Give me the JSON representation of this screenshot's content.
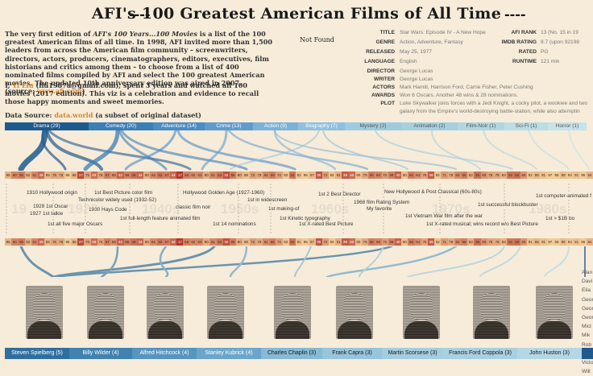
{
  "title": "AFI's 100 Greatest American Films of All Time",
  "title_dash": "----",
  "intro": {
    "t1": "The very first edition of ",
    "italic": "AFI's 100 Years...100 Movies",
    "t2": " is a list of the 100 greatest American films of all time. In 1998, AFI invited more than 1,500 leaders from across the American film community – screenwriters, directors, actors, producers, cinematographers, editors, executives, film historians and critics among them – to choose from a list of 400 nominated films compiled by AFI and select the 100 greatest American movies. The updated 10th anniversary edition was aired in 2007. (source: ",
    "link": "www.afi.com",
    "t3": ")"
  },
  "author": {
    "t1": "I, ",
    "name": "Yi Liu",
    "t2": " (liu1987a@gmail.com), spent 3 years and watched all 100 movies (2017 edition). This viz is a celebration and evidence to recall those happy moments and sweet memories."
  },
  "source": {
    "label": "Data Source: ",
    "link": "data.world",
    "note": " (a subset of original dataset)"
  },
  "not_found": "Not Found",
  "details": {
    "title": {
      "k": "TITLE",
      "v": "Star Wars: Episode IV - A New Hope"
    },
    "genre": {
      "k": "GENRE",
      "v": "Action, Adventure, Fantasy"
    },
    "released": {
      "k": "RELEASED",
      "v": "May 25, 1977"
    },
    "language": {
      "k": "LANGUAGE",
      "v": "English"
    },
    "director": {
      "k": "DIRECTOR",
      "v": "George Lucas"
    },
    "writer": {
      "k": "WRITER",
      "v": "George Lucas"
    },
    "actors": {
      "k": "ACTORS",
      "v": "Mark Hamill, Harrison Ford, Carrie Fisher, Peter Cushing"
    },
    "awards": {
      "k": "AWARDS",
      "v": "Won 6 Oscars. Another 48 wins & 28 nominations."
    },
    "plot": {
      "k": "PLOT",
      "v": "Luke Skywalker joins forces with a Jedi Knight, a cocky pilot, a wookiee and two",
      "v2": "galaxy from the Empire's world-destroying battle-station, while also attemptin"
    },
    "afi_rank": {
      "k": "AFI RANK",
      "v": "13 (No. 15 in 19"
    },
    "imdb": {
      "k": "IMDB RATING",
      "v": "8.7 (upon 92198"
    },
    "rated": {
      "k": "RATED",
      "v": "PG"
    },
    "runtime": {
      "k": "RUNTIME",
      "v": "121 min"
    }
  },
  "genres": [
    {
      "label": "Drama (29)",
      "color": "#1f5a8f",
      "w": 104
    },
    {
      "label": "Comedy (20)",
      "color": "#3a7fb8",
      "w": 80
    },
    {
      "label": "Adventure (14)",
      "color": "#4b8cc4",
      "w": 64
    },
    {
      "label": "Crime (13)",
      "color": "#5f9ccd",
      "w": 60
    },
    {
      "label": "Action (9)",
      "color": "#7db2d8",
      "w": 56
    },
    {
      "label": "Biography (7)",
      "color": "#8fc0de",
      "w": 58
    },
    {
      "label": "Mystery (2)",
      "color": "#9fcbe0",
      "w": 70
    },
    {
      "label": "Animation (2)",
      "color": "#a6d0df",
      "w": 70
    },
    {
      "label": "Film-Noir (1)",
      "color": "#b1d6e2",
      "w": 58
    },
    {
      "label": "Sci-Fi (1)",
      "color": "#bcdce6",
      "w": 54
    },
    {
      "label": "Horror (1)",
      "color": "#c6e2ea",
      "w": 48
    }
  ],
  "ranks_top": [
    "85",
    "60",
    "55",
    "82",
    "61",
    "45",
    "85",
    "76",
    "78",
    "96",
    "85",
    "27",
    "75",
    "48",
    "76",
    "57",
    "66",
    "42",
    "58",
    "49",
    "44",
    "80",
    "61",
    "53",
    "57",
    "44",
    "17",
    "58",
    "62",
    "63",
    "80",
    "61",
    "53",
    "32",
    "55",
    "80",
    "88",
    "72",
    "79",
    "64",
    "58",
    "74",
    "93",
    "52",
    "91",
    "96",
    "87",
    "35",
    "72",
    "94",
    "81",
    "38",
    "46",
    "90",
    "79",
    "55",
    "60",
    "72",
    "58",
    "40",
    "90",
    "56",
    "64",
    "76",
    "38",
    "92",
    "71",
    "78",
    "63",
    "58",
    "82",
    "49",
    "68",
    "76",
    "78",
    "84",
    "52",
    "50",
    "69",
    "91",
    "86",
    "91",
    "97",
    "96",
    "89",
    "94",
    "91",
    "96",
    "84"
  ],
  "ranks_bottom": [
    "85",
    "60",
    "55",
    "82",
    "61",
    "45",
    "85",
    "76",
    "78",
    "96",
    "85",
    "27",
    "75",
    "48",
    "76",
    "57",
    "66",
    "42",
    "58",
    "49",
    "44",
    "80",
    "61",
    "53",
    "57",
    "44",
    "17",
    "58",
    "62",
    "63",
    "80",
    "61",
    "53",
    "32",
    "55",
    "80",
    "88",
    "72",
    "79",
    "64",
    "58",
    "74",
    "93",
    "52",
    "91",
    "96",
    "87",
    "35",
    "72",
    "94",
    "81",
    "38",
    "46",
    "90",
    "79",
    "55",
    "60",
    "72",
    "58",
    "40",
    "90",
    "56",
    "64",
    "76",
    "38",
    "92",
    "71",
    "78",
    "63",
    "58",
    "82",
    "49",
    "68",
    "76",
    "78",
    "84",
    "52",
    "50",
    "69",
    "91",
    "86",
    "91",
    "97",
    "96",
    "89",
    "94",
    "91",
    "96",
    "84"
  ],
  "decades": [
    "19",
    "1930s",
    "1940s",
    "1950s",
    "1960s",
    "1970s",
    "1980s"
  ],
  "events": [
    "1910 Hollywood origin",
    "1st Best Picture color film",
    "Technicolor widely used (1932-52)",
    "1929 1st Oscar",
    "1930 Hays Code",
    "1927 1st talkie",
    "1st all five major Oscars",
    "Hollywood Golden Age (1927-1960)",
    "classic film noir",
    "1st full-length feature animated film",
    "1st 14 nominations",
    "1st in widescreen",
    "1st making-of",
    "1st Kinetic typography",
    "1st X-rated Best Picture",
    "1st 2 Best Director",
    "1968 film Rating System",
    "My favorite",
    "New Hollywood & Post Classical (60s-80s)",
    "1st successful blockbuster",
    "1st Vietnam War film after the war",
    "1st X-rated musical; wins record w/o Best Picture",
    "1st computer-animated f",
    "1st > $1B bo"
  ],
  "directors": [
    {
      "label": "Steven Spielberg (5)",
      "color": "#2f6f9f",
      "fg": "#ffffff",
      "w": 80
    },
    {
      "label": "Billy Wilder (4)",
      "color": "#3f82b0",
      "fg": "#ffffff",
      "w": 78
    },
    {
      "label": "Alfred Hitchcock (4)",
      "color": "#5595c0",
      "fg": "#ffffff",
      "w": 80
    },
    {
      "label": "Stanley Kubrick (4)",
      "color": "#6aa6cb",
      "fg": "#ffffff",
      "w": 80
    },
    {
      "label": "Charles Chaplin (3)",
      "color": "#86bad5",
      "fg": "#1a1a1a",
      "w": 76
    },
    {
      "label": "Frank Capra (3)",
      "color": "#96c5dc",
      "fg": "#1a1a1a",
      "w": 74
    },
    {
      "label": "Martin Scorsese (3)",
      "color": "#a4cde1",
      "fg": "#1a1a1a",
      "w": 76
    },
    {
      "label": "Francis Ford Coppola (3)",
      "color": "#a9d0e2",
      "fg": "#1a1a1a",
      "w": 92
    },
    {
      "label": "John Huston (3)",
      "color": "#b4d7e6",
      "fg": "#1a1a1a",
      "w": 80
    }
  ],
  "right_names": [
    "Alan",
    "Davi",
    "Elia",
    "Geor",
    "Geor",
    "Geor",
    "Micl",
    "Mik",
    "Rob",
    "Sidn",
    "Victo",
    "Will"
  ],
  "colors": {
    "background": "#f7ecd9",
    "accent": "#d9862a",
    "strip_low": "#f3d19a",
    "strip_high": "#b3322a"
  }
}
